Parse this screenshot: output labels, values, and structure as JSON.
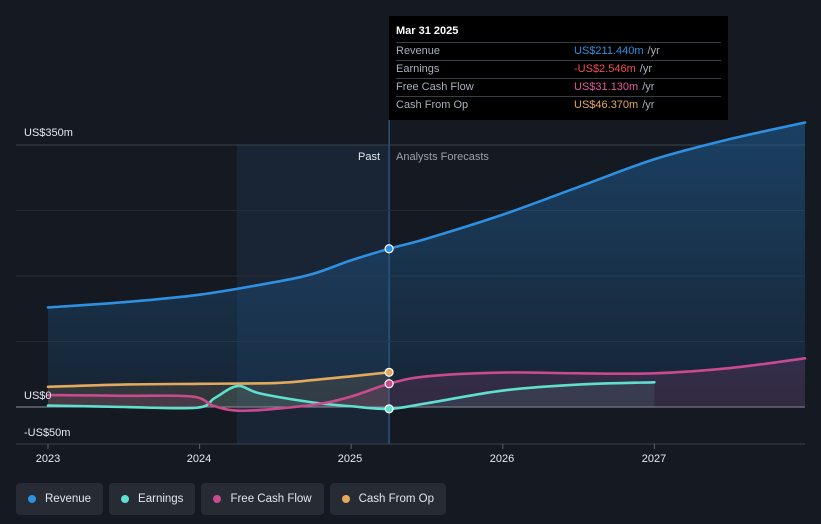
{
  "chart_data": {
    "type": "line",
    "y_axis_labels": [
      "US$350m",
      "US$0",
      "-US$50m"
    ],
    "ylim": [
      -50,
      350
    ],
    "x_tick_labels": [
      "2023",
      "2024",
      "2025",
      "2026",
      "2027"
    ],
    "xlim": [
      2023.0,
      2028.0
    ],
    "divider_date": 2025.25,
    "past_label": "Past",
    "forecast_label": "Analysts Forecasts",
    "series": [
      {
        "name": "Revenue",
        "color": "#2f8fe0",
        "points": [
          [
            2023.0,
            133
          ],
          [
            2023.5,
            140
          ],
          [
            2024.0,
            150
          ],
          [
            2024.5,
            167
          ],
          [
            2024.75,
            178
          ],
          [
            2025.0,
            196
          ],
          [
            2025.25,
            211.4
          ],
          [
            2025.5,
            225
          ],
          [
            2026.0,
            257
          ],
          [
            2026.5,
            294
          ],
          [
            2027.0,
            331
          ],
          [
            2027.5,
            358
          ],
          [
            2028.0,
            380
          ]
        ]
      },
      {
        "name": "Earnings",
        "color": "#5fe0cf",
        "points": [
          [
            2023.0,
            2
          ],
          [
            2023.5,
            0
          ],
          [
            2023.98,
            -1
          ],
          [
            2024.1,
            12
          ],
          [
            2024.25,
            28
          ],
          [
            2024.4,
            18
          ],
          [
            2024.75,
            6
          ],
          [
            2025.0,
            1
          ],
          [
            2025.25,
            -2.546
          ],
          [
            2025.5,
            5
          ],
          [
            2026.0,
            22
          ],
          [
            2026.5,
            30
          ],
          [
            2027.0,
            33
          ]
        ]
      },
      {
        "name": "Free Cash Flow",
        "color": "#c94b8e",
        "points": [
          [
            2023.0,
            16
          ],
          [
            2023.5,
            15
          ],
          [
            2023.95,
            14
          ],
          [
            2024.1,
            1
          ],
          [
            2024.3,
            -5
          ],
          [
            2024.75,
            3
          ],
          [
            2025.0,
            14
          ],
          [
            2025.25,
            31.13
          ],
          [
            2025.5,
            41
          ],
          [
            2026.0,
            46
          ],
          [
            2026.5,
            45
          ],
          [
            2027.0,
            45
          ],
          [
            2027.5,
            52
          ],
          [
            2028.0,
            65
          ]
        ]
      },
      {
        "name": "Cash From Op",
        "color": "#e3aa5e",
        "points": [
          [
            2023.0,
            27
          ],
          [
            2023.5,
            30
          ],
          [
            2024.0,
            31
          ],
          [
            2024.5,
            32
          ],
          [
            2024.75,
            36
          ],
          [
            2025.0,
            41
          ],
          [
            2025.25,
            46.37
          ]
        ]
      }
    ]
  },
  "tooltip": {
    "date": "Mar 31 2025",
    "rows": [
      {
        "label": "Revenue",
        "value": "US$211.440m",
        "unit": "/yr",
        "color": "#2f8fe0"
      },
      {
        "label": "Earnings",
        "value": "-US$2.546m",
        "unit": "/yr",
        "color": "#f0524f"
      },
      {
        "label": "Free Cash Flow",
        "value": "US$31.130m",
        "unit": "/yr",
        "color": "#e05aa0"
      },
      {
        "label": "Cash From Op",
        "value": "US$46.370m",
        "unit": "/yr",
        "color": "#e3aa5e"
      }
    ]
  },
  "legend": [
    {
      "label": "Revenue",
      "color": "#2f8fe0"
    },
    {
      "label": "Earnings",
      "color": "#5fe0cf"
    },
    {
      "label": "Free Cash Flow",
      "color": "#c94b8e"
    },
    {
      "label": "Cash From Op",
      "color": "#e3aa5e"
    }
  ]
}
